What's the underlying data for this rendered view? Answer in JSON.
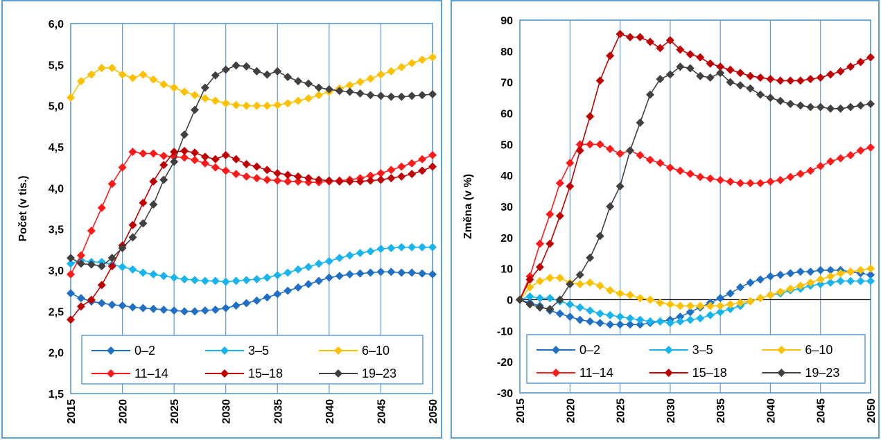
{
  "chart_data": [
    {
      "type": "line",
      "title": "",
      "xlabel": "",
      "ylabel": "Počet (v tis.)",
      "xlim": [
        2015,
        2050
      ],
      "ylim": [
        1.5,
        6.0
      ],
      "y_ticks": [
        "1,5",
        "2,0",
        "2,5",
        "3,0",
        "3,5",
        "4,0",
        "4,5",
        "5,0",
        "5,5",
        "6,0"
      ],
      "x_ticks": [
        "2015",
        "2020",
        "2025",
        "2030",
        "2035",
        "2040",
        "2045",
        "2050"
      ],
      "grid": "vertical",
      "legend_position": "bottom",
      "x": [
        2015,
        2016,
        2017,
        2018,
        2019,
        2020,
        2021,
        2022,
        2023,
        2024,
        2025,
        2026,
        2027,
        2028,
        2029,
        2030,
        2031,
        2032,
        2033,
        2034,
        2035,
        2036,
        2037,
        2038,
        2039,
        2040,
        2041,
        2042,
        2043,
        2044,
        2045,
        2046,
        2047,
        2048,
        2049,
        2050
      ],
      "series": [
        {
          "name": "0–2",
          "color": "#1f6fc5",
          "values": [
            2.72,
            2.66,
            2.62,
            2.6,
            2.58,
            2.57,
            2.55,
            2.54,
            2.53,
            2.52,
            2.51,
            2.5,
            2.5,
            2.51,
            2.52,
            2.54,
            2.57,
            2.6,
            2.63,
            2.67,
            2.71,
            2.75,
            2.79,
            2.83,
            2.87,
            2.91,
            2.93,
            2.95,
            2.96,
            2.97,
            2.98,
            2.98,
            2.97,
            2.97,
            2.96,
            2.95
          ]
        },
        {
          "name": "3–5",
          "color": "#18b4ef",
          "values": [
            3.08,
            3.12,
            3.1,
            3.1,
            3.07,
            3.04,
            3.01,
            2.97,
            2.95,
            2.93,
            2.91,
            2.89,
            2.88,
            2.87,
            2.87,
            2.86,
            2.87,
            2.88,
            2.89,
            2.91,
            2.94,
            2.97,
            3.01,
            3.04,
            3.08,
            3.11,
            3.15,
            3.18,
            3.21,
            3.23,
            3.26,
            3.27,
            3.28,
            3.28,
            3.28,
            3.28
          ]
        },
        {
          "name": "6–10",
          "color": "#ffc000",
          "values": [
            5.1,
            5.3,
            5.38,
            5.46,
            5.46,
            5.38,
            5.34,
            5.38,
            5.32,
            5.26,
            5.22,
            5.17,
            5.13,
            5.09,
            5.06,
            5.03,
            5.01,
            5.0,
            5.0,
            5.0,
            5.01,
            5.03,
            5.06,
            5.09,
            5.13,
            5.17,
            5.21,
            5.25,
            5.29,
            5.33,
            5.38,
            5.42,
            5.47,
            5.52,
            5.56,
            5.59
          ]
        },
        {
          "name": "11–14",
          "color": "#ff1a1a",
          "values": [
            2.95,
            3.18,
            3.48,
            3.76,
            4.05,
            4.25,
            4.44,
            4.42,
            4.42,
            4.39,
            4.38,
            4.37,
            4.34,
            4.3,
            4.25,
            4.21,
            4.17,
            4.14,
            4.12,
            4.1,
            4.09,
            4.08,
            4.08,
            4.07,
            4.07,
            4.08,
            4.09,
            4.1,
            4.12,
            4.15,
            4.18,
            4.22,
            4.26,
            4.3,
            4.35,
            4.4
          ]
        },
        {
          "name": "15–18",
          "color": "#c00000",
          "values": [
            2.4,
            2.56,
            2.64,
            2.82,
            3.05,
            3.3,
            3.55,
            3.82,
            4.08,
            4.28,
            4.44,
            4.45,
            4.43,
            4.38,
            4.35,
            4.4,
            4.35,
            4.29,
            4.26,
            4.22,
            4.18,
            4.16,
            4.14,
            4.12,
            4.1,
            4.09,
            4.08,
            4.08,
            4.08,
            4.09,
            4.1,
            4.12,
            4.14,
            4.17,
            4.21,
            4.26
          ]
        },
        {
          "name": "19–23",
          "color": "#404040",
          "values": [
            3.15,
            3.08,
            3.07,
            3.05,
            3.15,
            3.27,
            3.4,
            3.57,
            3.8,
            4.1,
            4.32,
            4.65,
            4.95,
            5.22,
            5.37,
            5.44,
            5.49,
            5.48,
            5.42,
            5.38,
            5.42,
            5.35,
            5.3,
            5.27,
            5.22,
            5.2,
            5.18,
            5.17,
            5.15,
            5.13,
            5.12,
            5.11,
            5.11,
            5.12,
            5.13,
            5.14
          ]
        }
      ]
    },
    {
      "type": "line",
      "title": "",
      "xlabel": "",
      "ylabel": "Změna (v %)",
      "xlim": [
        2015,
        2050
      ],
      "ylim": [
        -30,
        90
      ],
      "y_ticks": [
        "-30",
        "-20",
        "-10",
        "0",
        "10",
        "20",
        "30",
        "40",
        "50",
        "60",
        "70",
        "80",
        "90"
      ],
      "x_ticks": [
        "2015",
        "2020",
        "2025",
        "2030",
        "2035",
        "2040",
        "2045",
        "2050"
      ],
      "grid": "vertical",
      "zero_line": true,
      "legend_position": "bottom",
      "x": [
        2015,
        2016,
        2017,
        2018,
        2019,
        2020,
        2021,
        2022,
        2023,
        2024,
        2025,
        2026,
        2027,
        2028,
        2029,
        2030,
        2031,
        2032,
        2033,
        2034,
        2035,
        2036,
        2037,
        2038,
        2039,
        2040,
        2041,
        2042,
        2043,
        2044,
        2045,
        2046,
        2047,
        2048,
        2049,
        2050
      ],
      "series": [
        {
          "name": "0–2",
          "color": "#1f6fc5",
          "values": [
            0,
            -1,
            -2,
            -3.5,
            -4.5,
            -5.5,
            -6.5,
            -7,
            -7.5,
            -8,
            -8,
            -8,
            -8,
            -7.5,
            -7,
            -6.5,
            -5.5,
            -4,
            -2.5,
            -1,
            0.5,
            2,
            4,
            5.5,
            6.5,
            7.5,
            8,
            8.5,
            9,
            9,
            9.5,
            9.5,
            9.5,
            9,
            8.5,
            8
          ]
        },
        {
          "name": "3–5",
          "color": "#18b4ef",
          "values": [
            0,
            1,
            0.5,
            0.5,
            -0.5,
            -1.5,
            -2.5,
            -3.5,
            -4.5,
            -5,
            -5.5,
            -6,
            -6.5,
            -7,
            -7,
            -7.5,
            -7,
            -6.5,
            -6,
            -5,
            -4,
            -3,
            -2,
            -0.5,
            0.5,
            1.5,
            2,
            3,
            3.5,
            4.5,
            5,
            5.5,
            6,
            6,
            6,
            6
          ]
        },
        {
          "name": "6–10",
          "color": "#ffc000",
          "values": [
            0,
            4,
            6,
            7,
            7,
            5.5,
            5,
            5.5,
            4.5,
            3,
            2,
            1.5,
            0.5,
            0,
            -1,
            -1.5,
            -2,
            -2,
            -2,
            -2,
            -2,
            -1.5,
            -1,
            -0.5,
            0.5,
            1.5,
            2.5,
            3.5,
            4.5,
            5.5,
            6.5,
            7.5,
            8.5,
            9,
            9.5,
            10
          ]
        },
        {
          "name": "11–14",
          "color": "#ff1a1a",
          "values": [
            0,
            7.5,
            18,
            27.5,
            37.5,
            44,
            50,
            50,
            50,
            48.5,
            47,
            48,
            46.5,
            45,
            44,
            42.5,
            41.5,
            40.5,
            39.5,
            39,
            38.5,
            38,
            37.5,
            37.5,
            37.5,
            38,
            38.5,
            39.5,
            40.5,
            41.5,
            43,
            44.5,
            45.5,
            46.5,
            48,
            49
          ]
        },
        {
          "name": "15–18",
          "color": "#c00000",
          "values": [
            0,
            6.5,
            10.5,
            18,
            27,
            36.5,
            48,
            59,
            70.5,
            78.5,
            85.5,
            84.5,
            84.5,
            83,
            81,
            83.5,
            80.5,
            79,
            78,
            76,
            75,
            74,
            73,
            72,
            71.5,
            71,
            70.5,
            70.5,
            70.5,
            71,
            71.5,
            72.5,
            73.5,
            75,
            76.5,
            78
          ]
        },
        {
          "name": "19–23",
          "color": "#404040",
          "values": [
            0,
            -1.5,
            -2.5,
            -3,
            0,
            5,
            8,
            13.5,
            20.5,
            30,
            36.5,
            48,
            57,
            66,
            71,
            72.5,
            75,
            74.5,
            72,
            71.5,
            73,
            70,
            69,
            68,
            66,
            65,
            64,
            63,
            62.5,
            62,
            62,
            61.5,
            61.5,
            62,
            62.5,
            63
          ]
        }
      ]
    }
  ]
}
